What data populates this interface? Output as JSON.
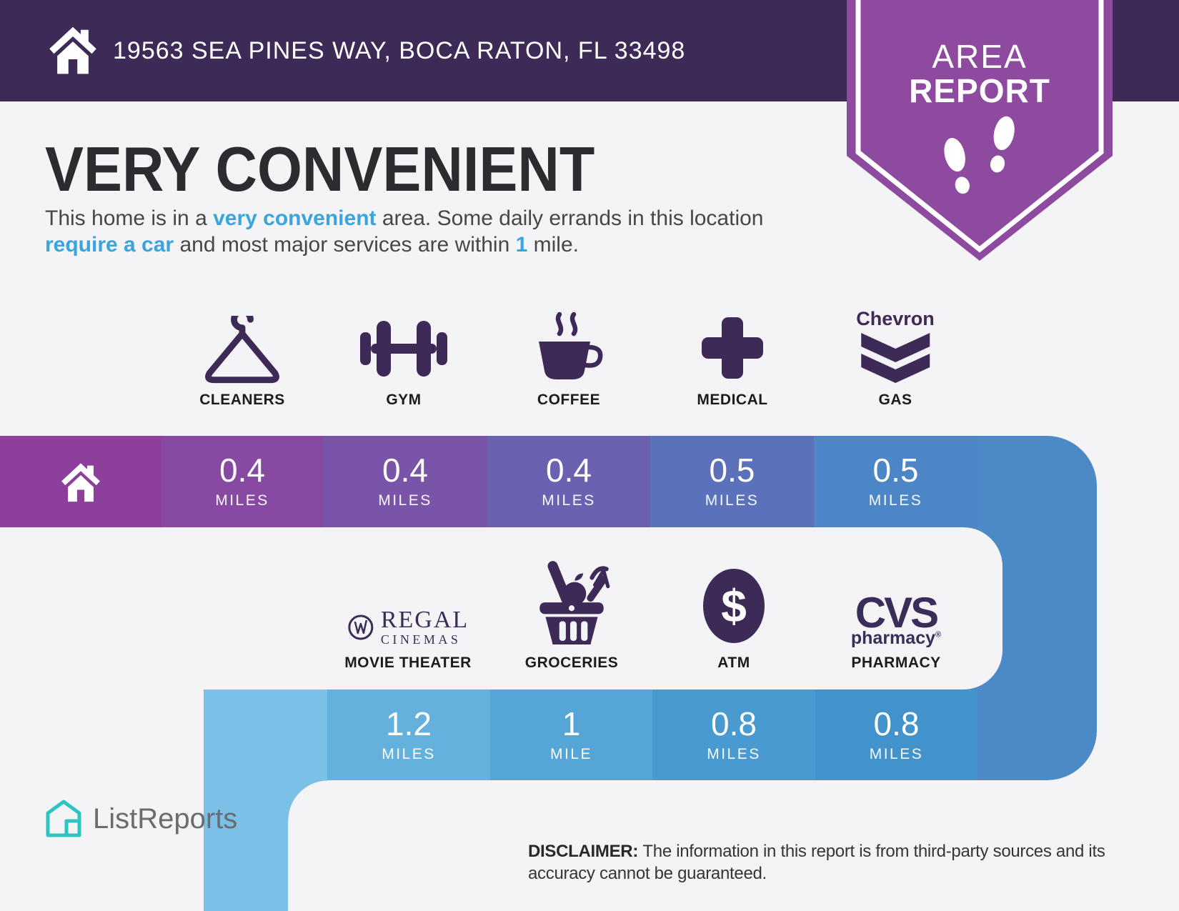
{
  "header": {
    "address": "19563 SEA PINES WAY, BOCA RATON, FL 33498",
    "badge": {
      "line1": "AREA",
      "line2": "REPORT"
    }
  },
  "main": {
    "title": "VERY CONVENIENT",
    "intro_segments": [
      {
        "text": "This home is in a ",
        "bold": false
      },
      {
        "text": "very convenient",
        "bold": true
      },
      {
        "text": " area. Some daily errands in this location ",
        "bold": false
      },
      {
        "text": "require a car",
        "bold": true
      },
      {
        "text": " and most major services are within ",
        "bold": false
      },
      {
        "text": "1",
        "bold": true
      },
      {
        "text": " mile.",
        "bold": false
      }
    ]
  },
  "row1": {
    "items": [
      {
        "label": "CLEANERS",
        "icon": "hanger-icon",
        "distance": "0.4",
        "unit": "MILES"
      },
      {
        "label": "GYM",
        "icon": "dumbbell-icon",
        "distance": "0.4",
        "unit": "MILES"
      },
      {
        "label": "COFFEE",
        "icon": "coffee-cup-icon",
        "distance": "0.4",
        "unit": "MILES"
      },
      {
        "label": "MEDICAL",
        "icon": "medical-cross-icon",
        "distance": "0.5",
        "unit": "MILES"
      },
      {
        "label": "GAS",
        "icon": "chevron-logo",
        "brand": "Chevron",
        "distance": "0.5",
        "unit": "MILES"
      }
    ]
  },
  "row2": {
    "items": [
      {
        "label": "MOVIE THEATER",
        "icon": "regal-cinemas-logo",
        "brand_top": "REGAL",
        "brand_bottom": "CINEMAS",
        "distance": "1.2",
        "unit": "MILES"
      },
      {
        "label": "GROCERIES",
        "icon": "grocery-basket-icon",
        "distance": "1",
        "unit": "MILE"
      },
      {
        "label": "ATM",
        "icon": "atm-dollar-icon",
        "symbol": "$",
        "distance": "0.8",
        "unit": "MILES"
      },
      {
        "label": "PHARMACY",
        "icon": "cvs-pharmacy-logo",
        "brand_top": "CVS",
        "brand_bottom": "pharmacy",
        "reg_mark": "®",
        "distance": "0.8",
        "unit": "MILES"
      }
    ]
  },
  "footer": {
    "brand": "ListReports",
    "disclaimer_label": "DISCLAIMER:",
    "disclaimer_line1": "The information in this report is from third-party sources and its",
    "disclaimer_line2": "accuracy cannot be guaranteed."
  },
  "colors": {
    "header_purple": "#3E2A57",
    "badge_purple": "#8D4A9E",
    "accent_blue": "#3AA4DC",
    "icon_purple": "#3E2A57",
    "bar1_home": "#8C3F9B",
    "bar1_cells": [
      "#8749A2",
      "#7954A9",
      "#6A62B0",
      "#5B72BA",
      "#4D86C6"
    ],
    "bar2_stub": "#7BC0E7",
    "bar2_cells": [
      "#65B1DE",
      "#55A5D7",
      "#489AD1",
      "#4292CB"
    ],
    "connector_blue": "#4B89C7",
    "logo_teal": "#2CC5C4"
  }
}
